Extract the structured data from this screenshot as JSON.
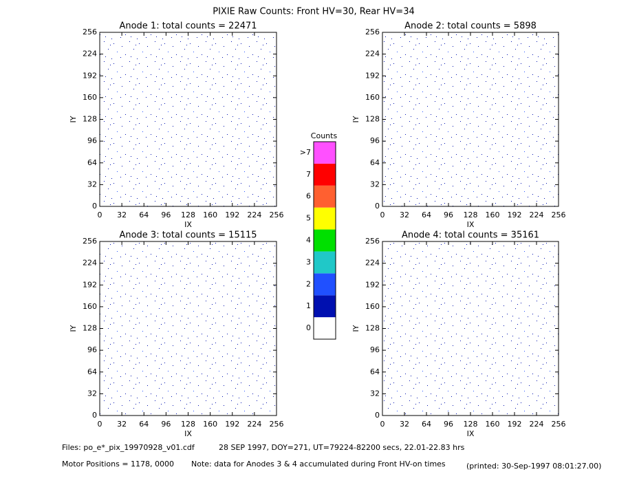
{
  "title": "PIXIE Raw Counts:  Front HV=30, Rear HV=34",
  "chart_data": [
    {
      "type": "heatmap",
      "title": "Anode 1: total counts = 22471",
      "x_label": "IX",
      "y_label": "IY",
      "xlim": [
        0,
        256
      ],
      "ylim": [
        0,
        256
      ],
      "xticks": [
        0,
        32,
        64,
        96,
        128,
        160,
        192,
        224,
        256
      ],
      "yticks": [
        0,
        32,
        64,
        96,
        128,
        160,
        192,
        224,
        256
      ]
    },
    {
      "type": "heatmap",
      "title": "Anode 2: total counts = 5898",
      "x_label": "IX",
      "y_label": "IY",
      "xlim": [
        0,
        256
      ],
      "ylim": [
        0,
        256
      ],
      "xticks": [
        0,
        32,
        64,
        96,
        128,
        160,
        192,
        224,
        256
      ],
      "yticks": [
        0,
        32,
        64,
        96,
        128,
        160,
        192,
        224,
        256
      ]
    },
    {
      "type": "heatmap",
      "title": "Anode 3: total counts = 15115",
      "x_label": "IX",
      "y_label": "IY",
      "xlim": [
        0,
        256
      ],
      "ylim": [
        0,
        256
      ],
      "xticks": [
        0,
        32,
        64,
        96,
        128,
        160,
        192,
        224,
        256
      ],
      "yticks": [
        0,
        32,
        64,
        96,
        128,
        160,
        192,
        224,
        256
      ]
    },
    {
      "type": "heatmap",
      "title": "Anode 4: total counts = 35161",
      "x_label": "IX",
      "y_label": "IY",
      "xlim": [
        0,
        256
      ],
      "ylim": [
        0,
        256
      ],
      "xticks": [
        0,
        32,
        64,
        96,
        128,
        160,
        192,
        224,
        256
      ],
      "yticks": [
        0,
        32,
        64,
        96,
        128,
        160,
        192,
        224,
        256
      ]
    }
  ],
  "colorbar": {
    "title": "Counts",
    "levels": [
      {
        "label": "0",
        "color": "#ffffff"
      },
      {
        "label": "1",
        "color": "#0010b0"
      },
      {
        "label": "2",
        "color": "#2050ff"
      },
      {
        "label": "3",
        "color": "#20c8c8"
      },
      {
        "label": "4",
        "color": "#00e000"
      },
      {
        "label": "5",
        "color": "#ffff00"
      },
      {
        "label": "6",
        "color": "#ff6030"
      },
      {
        "label": "7",
        "color": "#ff0000"
      },
      {
        "label": ">7",
        "color": "#ff50ff"
      }
    ]
  },
  "footer": {
    "files": "Files: po_e*_pix_19970928_v01.cdf",
    "date": "28 SEP 1997, DOY=271, UT=79224-82200 secs, 22.01-22.83 hrs",
    "motor": "Motor Positions = 1178, 0000",
    "note": "Note: data for Anodes 3 & 4 accumulated during Front HV-on times",
    "printed": "(printed: 30-Sep-1997 08:01:27.00)"
  }
}
